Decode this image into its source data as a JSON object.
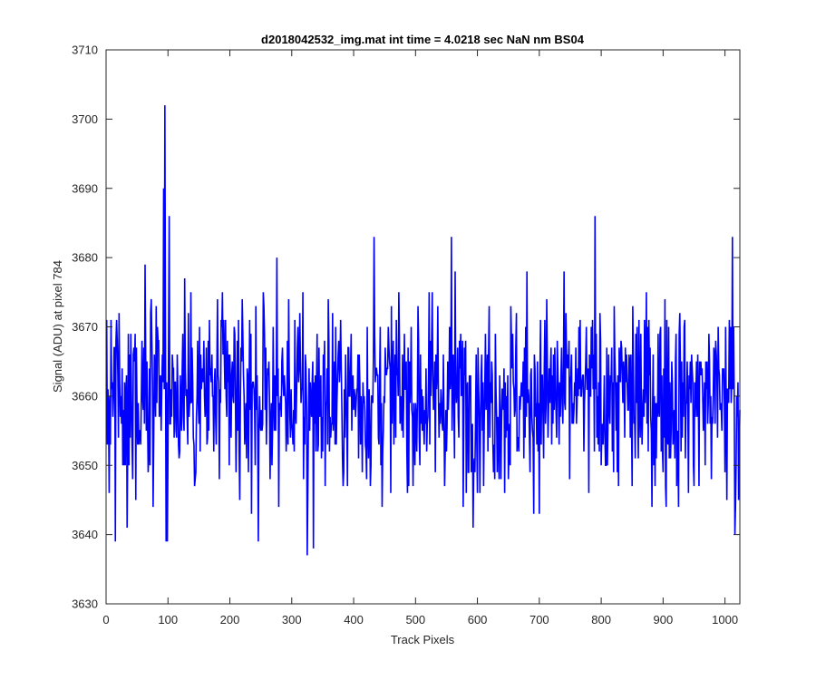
{
  "chart_data": {
    "type": "line",
    "title": "d2018042532_img.mat int time = 4.0218 sec  NaN nm BS04",
    "xlabel": "Track Pixels",
    "ylabel": "Signal (ADU) at pixel 784",
    "xlim": [
      0,
      1024
    ],
    "ylim": [
      3630,
      3710
    ],
    "xticks": [
      0,
      100,
      200,
      300,
      400,
      500,
      600,
      700,
      800,
      900,
      1000
    ],
    "yticks": [
      3630,
      3640,
      3650,
      3660,
      3670,
      3680,
      3690,
      3700,
      3710
    ],
    "grid": false,
    "n_points": 1024,
    "noise": {
      "mean": 3660,
      "std": 7,
      "min": 3637,
      "max": 3702
    },
    "notable_points": [
      {
        "x": 1,
        "y": 3671
      },
      {
        "x": 34,
        "y": 3641
      },
      {
        "x": 63,
        "y": 3679
      },
      {
        "x": 93,
        "y": 3690
      },
      {
        "x": 95,
        "y": 3702
      },
      {
        "x": 97,
        "y": 3639
      },
      {
        "x": 102,
        "y": 3686
      },
      {
        "x": 246,
        "y": 3639
      },
      {
        "x": 325,
        "y": 3637
      },
      {
        "x": 335,
        "y": 3638
      },
      {
        "x": 433,
        "y": 3683
      },
      {
        "x": 558,
        "y": 3683
      },
      {
        "x": 790,
        "y": 3686
      },
      {
        "x": 1012,
        "y": 3683
      },
      {
        "x": 1016,
        "y": 3640
      },
      {
        "x": 1022,
        "y": 3645
      }
    ],
    "series": [
      {
        "color": "#0000ff"
      }
    ]
  }
}
